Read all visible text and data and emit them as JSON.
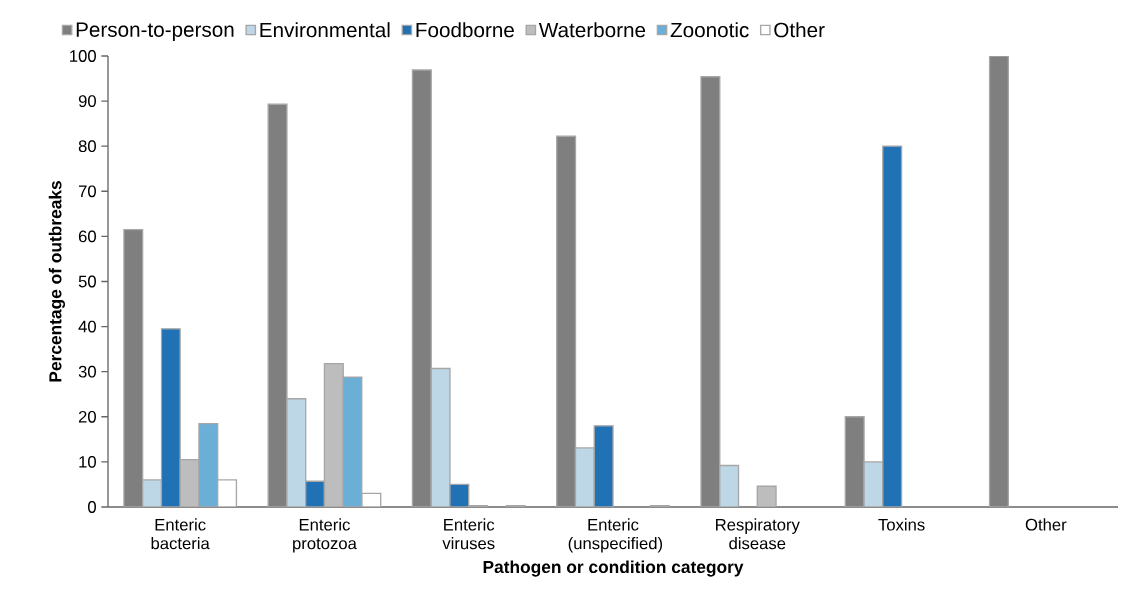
{
  "chart_data": {
    "type": "bar",
    "categories": [
      "Enteric bacteria",
      "Enteric protozoa",
      "Enteric viruses",
      "Enteric (unspecified)",
      "Respiratory disease",
      "Toxins",
      "Other"
    ],
    "series": [
      {
        "name": "Person-to-person",
        "color": "#7f7f7f",
        "values": [
          61.5,
          89.3,
          96.9,
          82.2,
          95.4,
          20,
          100
        ]
      },
      {
        "name": "Environmental",
        "color": "#bdd7e7",
        "values": [
          6,
          24,
          30.7,
          13.1,
          9.2,
          10,
          null
        ]
      },
      {
        "name": "Foodborne",
        "color": "#2171b5",
        "values": [
          39.5,
          5.7,
          5,
          18,
          null,
          80,
          null
        ]
      },
      {
        "name": "Waterborne",
        "color": "#bdbdbd",
        "values": [
          10.5,
          31.8,
          0.3,
          null,
          4.6,
          null,
          null
        ]
      },
      {
        "name": "Zoonotic",
        "color": "#6baed6",
        "values": [
          18.5,
          28.8,
          null,
          null,
          null,
          null,
          null
        ]
      },
      {
        "name": "Other",
        "color": "#ffffff",
        "values": [
          6,
          3,
          0.3,
          0.3,
          null,
          null,
          null
        ]
      }
    ],
    "xlabel": "Pathogen or condition category",
    "ylabel": "Percentage of outbreaks",
    "ylim": [
      0,
      100
    ],
    "yticks": [
      0,
      10,
      20,
      30,
      40,
      50,
      60,
      70,
      80,
      90,
      100
    ],
    "grid": false,
    "legend": "top"
  }
}
